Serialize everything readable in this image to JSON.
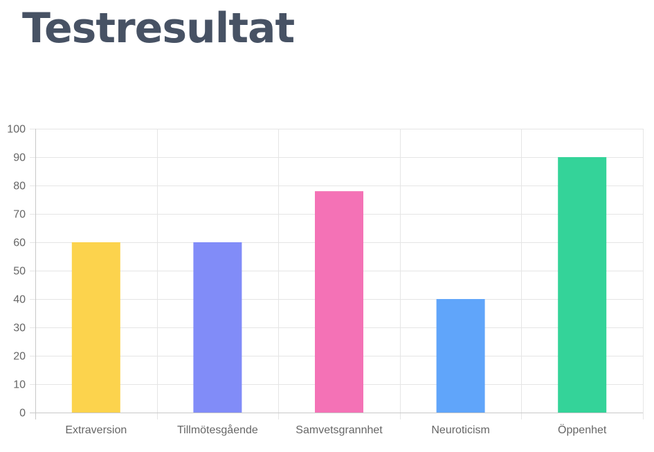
{
  "page": {
    "title": "Testresultat"
  },
  "chart_data": {
    "type": "bar",
    "title": "",
    "xlabel": "",
    "ylabel": "",
    "categories": [
      "Extraversion",
      "Tillmötesgående",
      "Samvetsgrannhet",
      "Neuroticism",
      "Öppenhet"
    ],
    "values": [
      60,
      60,
      78,
      40,
      90
    ],
    "colors": [
      "#fcd34d",
      "#818cf8",
      "#f472b6",
      "#60a5fa",
      "#34d399"
    ],
    "ylim": [
      0,
      100
    ],
    "yticks": [
      0,
      10,
      20,
      30,
      40,
      50,
      60,
      70,
      80,
      90,
      100
    ],
    "grid": true,
    "legend": "none"
  }
}
